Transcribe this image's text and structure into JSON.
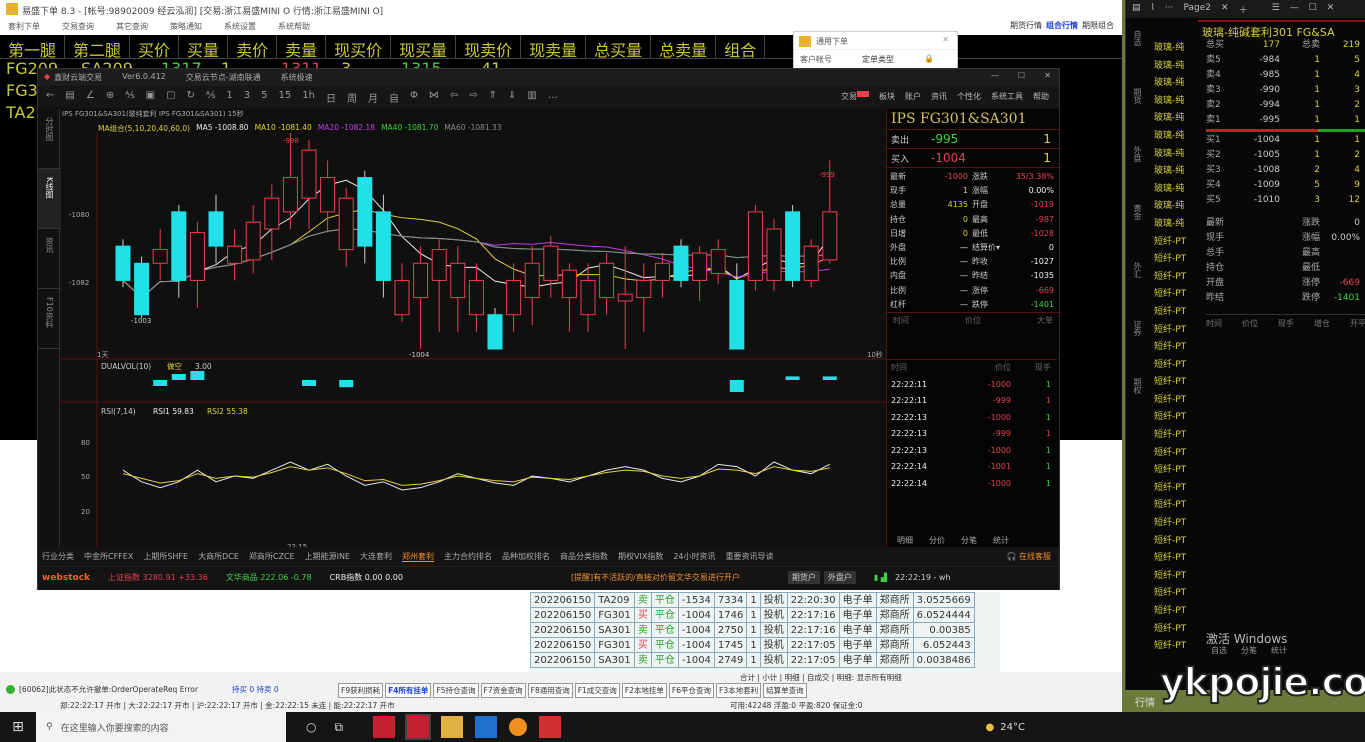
{
  "back_window": {
    "title": "易盛下单 8.3 - [帐号:98902009 经云泓润] [交易:浙江易盛MINI  O 行情:浙江易盛MINI  O]",
    "menu": [
      "套利下单",
      "交易查询",
      "其它查询",
      "策略通知",
      "系统设置",
      "系统帮助"
    ],
    "top_tabs": [
      "期货行情",
      "组合行情",
      "期限组合"
    ],
    "grid_headers": [
      "第一腿",
      "第二腿",
      "买价",
      "买量",
      "卖价",
      "卖量",
      "现买价",
      "现买量",
      "现卖价",
      "现卖量",
      "总买量",
      "总卖量",
      "组合"
    ],
    "rows": [
      [
        "FG209",
        "SA209",
        "1317",
        "1",
        "1311",
        "3",
        "1315",
        "41",
        "1313",
        "45",
        "452",
        "700"
      ],
      [
        "FG3"
      ],
      [
        "TA2"
      ]
    ]
  },
  "dialog": {
    "title": "通用下单",
    "field": "客户帐号",
    "type_label": "定单类型"
  },
  "main_window": {
    "title": "鑫财云端交易",
    "version": "Ver6.0.412",
    "node": "交易云节点-湖南联通",
    "mode": "系统极速",
    "tools": [
      "←",
      "▤",
      "∠",
      "⊕",
      "⅍",
      "▣",
      "▢",
      "↻",
      "⅍",
      "1",
      "3",
      "5",
      "15",
      "1h",
      "日",
      "周",
      "月",
      "自",
      "Φ",
      "⋈",
      "⇦",
      "⇨",
      "⇑",
      "⇓",
      "▥",
      "…"
    ],
    "menu_right": [
      "交易",
      "板块",
      "账户",
      "资讯",
      "个性化",
      "系统工具",
      "帮助"
    ],
    "menu_badge_color": "#e84050",
    "vtabs": [
      "分时图",
      "K线图",
      "资讯",
      "F10资料"
    ],
    "chart_header": "IPS FG301&SA301(玻纯套利 IPS FG301&SA301) 15秒",
    "ma_legend": [
      {
        "text": "MA组合(5,10,20,40,60,0)",
        "color": "#e0d040"
      },
      {
        "text": "MA5 -1008.80",
        "color": "#e8e8e8"
      },
      {
        "text": "MA10 -1081.40",
        "color": "#e0d040"
      },
      {
        "text": "MA20 -1082.18",
        "color": "#c040e0"
      },
      {
        "text": "MA40 -1081.70",
        "color": "#40d040"
      },
      {
        "text": "MA60 -1081.33",
        "color": "#888888"
      }
    ],
    "price_ticks": [
      "-1080",
      "-1082"
    ],
    "price_annotations": [
      "-998",
      "-1003",
      "-1004",
      "-999"
    ],
    "period_left": "1天",
    "period_right": "10秒",
    "vol_legend": {
      "name": "DUALVOL(10)",
      "label": "做空",
      "value": "3.00"
    },
    "rsi_legend": {
      "name": "RSI(7,14)",
      "rsi1": "RSI1 59.83",
      "rsi2": "RSI2 55.38"
    },
    "rsi_ticks": [
      "80",
      "50",
      "20"
    ],
    "time_label": "22:15",
    "candles": [
      [
        -1081,
        -1082,
        -1080.8,
        -1082.2
      ],
      [
        -1081.5,
        -1083,
        -1081.3,
        -1083.1
      ],
      [
        -1081.5,
        -1081.1,
        -1080.5,
        -1082
      ],
      [
        -1080,
        -1082,
        -1079.8,
        -1082.5
      ],
      [
        -1082,
        -1080.6,
        -1080.3,
        -1082.8
      ],
      [
        -1080,
        -1081,
        -1079.5,
        -1081.5
      ],
      [
        -1081.5,
        -1081,
        -1080.5,
        -1082
      ],
      [
        -1081.4,
        -1080.3,
        -1079.8,
        -1081.8
      ],
      [
        -1080.5,
        -1079.6,
        -1079.2,
        -1081.4
      ],
      [
        -1080,
        -1079,
        -1077.7,
        -1080.5
      ],
      [
        -1079.6,
        -1078.2,
        -1077.9,
        -1080.5
      ],
      [
        -1080,
        -1079,
        -1078.5,
        -1080.6
      ],
      [
        -1081.1,
        -1079.6,
        -1079.3,
        -1081.6
      ],
      [
        -1079,
        -1081,
        -1078.8,
        -1081.5
      ],
      [
        -1080,
        -1082,
        -1079.5,
        -1082.5
      ],
      [
        -1083,
        -1082,
        -1081.5,
        -1083.2
      ],
      [
        -1082.5,
        -1081.5,
        -1081,
        -1084
      ],
      [
        -1082,
        -1081.1,
        -1080.8,
        -1083.5
      ],
      [
        -1082.5,
        -1081.5,
        -1081,
        -1083.5
      ],
      [
        -1083,
        -1082,
        -1081.5,
        -1083.5
      ],
      [
        -1083,
        -1084,
        -1082.8,
        -1084
      ],
      [
        -1083,
        -1082,
        -1081.5,
        -1083.5
      ],
      [
        -1082.5,
        -1081.5,
        -1081,
        -1083.3
      ],
      [
        -1082,
        -1081,
        -1080.7,
        -1082.5
      ],
      [
        -1082.5,
        -1081.7,
        -1081.5,
        -1083.5
      ],
      [
        -1083,
        -1082,
        -1081.5,
        -1083.5
      ],
      [
        -1082.5,
        -1081.5,
        -1081.2,
        -1083
      ],
      [
        -1082.6,
        -1082.4,
        -1081,
        -1084
      ],
      [
        -1082.5,
        -1082,
        -1081.5,
        -1083.5
      ],
      [
        -1082,
        -1081.5,
        -1081.2,
        -1082.5
      ],
      [
        -1081,
        -1082,
        -1080.8,
        -1082.2
      ],
      [
        -1082,
        -1081.2,
        -1081,
        -1082.6
      ],
      [
        -1081.8,
        -1081.1,
        -1080.8,
        -1082.1
      ],
      [
        -1082,
        -1084,
        -1081.5,
        -1084
      ],
      [
        -1082,
        -1080,
        -1079.8,
        -1082.3
      ],
      [
        -1082,
        -1080.5,
        -1080.2,
        -1082.3
      ],
      [
        -1080,
        -1082,
        -1079.8,
        -1082.2
      ],
      [
        -1082,
        -1081,
        -1080.8,
        -1082.2
      ],
      [
        -1081.4,
        -1080,
        -1078.5,
        -1081.5
      ]
    ],
    "volume": [
      0,
      0,
      -1,
      1,
      1.5,
      0,
      0,
      0,
      0,
      0,
      -1,
      0,
      -1.2,
      0,
      0,
      0,
      0,
      0,
      0,
      0,
      0,
      0,
      0,
      0,
      0,
      0,
      0,
      0,
      0,
      0,
      0,
      0,
      0,
      -2,
      0,
      0,
      0.6,
      0,
      0.6
    ],
    "rsi1": [
      55,
      45,
      40,
      45,
      55,
      45,
      50,
      48,
      55,
      62,
      55,
      60,
      50,
      42,
      45,
      38,
      40,
      45,
      52,
      48,
      44,
      42,
      50,
      48,
      45,
      50,
      55,
      58,
      55,
      48,
      45,
      50,
      60,
      58,
      50,
      62,
      55,
      52,
      60
    ],
    "rsi2": [
      52,
      48,
      44,
      46,
      52,
      48,
      50,
      49,
      53,
      58,
      55,
      57,
      52,
      46,
      47,
      42,
      43,
      46,
      50,
      48,
      46,
      45,
      49,
      48,
      47,
      50,
      53,
      55,
      54,
      50,
      48,
      50,
      56,
      55,
      52,
      58,
      55,
      54,
      57
    ],
    "info": {
      "title": "IPS  FG301&SA301",
      "sell_label": "卖出",
      "sell_price": "-995",
      "sell_qty": "1",
      "buy_label": "买入",
      "buy_price": "-1004",
      "buy_qty": "1",
      "rows": [
        [
          "最新",
          "-1000",
          "涨跌",
          "35/3.38%"
        ],
        [
          "现手",
          "1",
          "涨幅",
          "0.00%"
        ],
        [
          "总量",
          "4135",
          "开盘",
          "-1019"
        ],
        [
          "持仓",
          "0",
          "最高",
          "-987"
        ],
        [
          "日增",
          "0",
          "最低",
          "-1028"
        ],
        [
          "外盘",
          "—",
          "结算价▾",
          "0"
        ],
        [
          "比例",
          "—",
          "昨收",
          "-1027"
        ],
        [
          "内盘",
          "—",
          "昨结",
          "-1035"
        ],
        [
          "比例",
          "—",
          "涨停",
          "-669"
        ],
        [
          "杠杆",
          "—",
          "跌停",
          "-1401"
        ]
      ],
      "mid_header": [
        "时间",
        "价位",
        "大单"
      ],
      "tick_header": [
        "时间",
        "价位",
        "现手"
      ],
      "ticks": [
        [
          "22:22:11",
          "-1000",
          "1"
        ],
        [
          "22:22:11",
          "-999",
          "1"
        ],
        [
          "22:22:13",
          "-1000",
          "1"
        ],
        [
          "22:22:13",
          "-999",
          "1"
        ],
        [
          "22:22:13",
          "-1000",
          "1"
        ],
        [
          "22:22:14",
          "-1001",
          "1"
        ],
        [
          "22:22:14",
          "-1000",
          "1"
        ]
      ],
      "tabs": [
        "明细",
        "分价",
        "分笔",
        "统计"
      ]
    },
    "categories": [
      "行业分类",
      "中金所CFFEX",
      "上期所SHFE",
      "大商所DCE",
      "郑商所CZCE",
      "上期能源INE",
      "大连套利",
      "郑州套利",
      "主力合约排名",
      "品种加权排名",
      "商品分类指数",
      "期权VIX指数",
      "24小时资讯",
      "重要资讯导读"
    ],
    "active_category": "郑州套利",
    "support": "在线客服",
    "logo": "webstock",
    "idx1": "上证指数 3280.91 +33.36",
    "idx2": "文华商品 222.06 -0.78",
    "idx3": "CRB指数  0.00 0.00",
    "notice": "[提醒]有不活跃的/直接对价留文华交易进行开户",
    "btn_domestic": "期货户",
    "btn_foreign": "外盘户",
    "clock": "22:22:19 - wh"
  },
  "trades": [
    [
      "202206150",
      "TA209",
      "卖",
      "平仓",
      "-1534",
      "7334",
      "1",
      "投机",
      "22:20:30",
      "电子单",
      "郑商所",
      "3.0525669"
    ],
    [
      "202206150",
      "FG301",
      "买",
      "平仓",
      "-1004",
      "1746",
      "1",
      "投机",
      "22:17:16",
      "电子单",
      "郑商所",
      "6.0524444"
    ],
    [
      "202206150",
      "SA301",
      "卖",
      "平仓",
      "-1004",
      "2750",
      "1",
      "投机",
      "22:17:16",
      "电子单",
      "郑商所",
      "0.00385"
    ],
    [
      "202206150",
      "FG301",
      "买",
      "平仓",
      "-1004",
      "1745",
      "1",
      "投机",
      "22:17:05",
      "电子单",
      "郑商所",
      "6.052443"
    ],
    [
      "202206150",
      "SA301",
      "卖",
      "平仓",
      "-1004",
      "2749",
      "1",
      "投机",
      "22:17:05",
      "电子单",
      "郑商所",
      "0.0038486"
    ]
  ],
  "status": {
    "subtabs": "合计 | 小计 | 明细 | 自成交 | 明细: 显示所有明细",
    "error": "[60062]此状态不允许撤单:OrderOperateReq Error",
    "counts": "持买 0  持卖 0",
    "fkeys": [
      "F9获利损耗",
      "F4所有挂单",
      "F5持仓查询",
      "F7资金查询",
      "F8通用查询",
      "F1成交查询",
      "F2本地挂单",
      "F6平仓查询",
      "F3本地套利",
      "结算单查询"
    ],
    "markets": "郑:22:22:17 开市 | 大:22:22:17 开市 | 沪:22:22:17 开市 | 金:22:22:15 未连 | 能:22:22:17 开市",
    "funds": "可用:42248 浮盈:0 平盈:820 保证金:0"
  },
  "taskbar": {
    "search_placeholder": "在这里输入你要搜索的内容",
    "weather": "24°C"
  },
  "right_panel": {
    "tab": "Page2",
    "title": "玻璃-纯碱套利301   FG&SA",
    "vtabs": [
      "自选",
      "期货",
      "外盘",
      "黄金",
      "外汇",
      "证券",
      "期权"
    ],
    "names": [
      "玻璃-纯",
      "玻璃-纯",
      "玻璃-纯",
      "玻璃-纯",
      "玻璃-纯",
      "玻璃-纯",
      "玻璃-纯",
      "玻璃-纯",
      "玻璃-纯",
      "玻璃-纯",
      "玻璃-纯",
      "短纤-PT",
      "短纤-PT",
      "短纤-PT",
      "短纤-PT",
      "短纤-PT",
      "短纤-PT",
      "短纤-PT",
      "短纤-PT",
      "短纤-PT",
      "短纤-PT",
      "短纤-PT",
      "短纤-PT",
      "短纤-PT",
      "短纤-PT",
      "短纤-PT",
      "短纤-PT",
      "短纤-PT",
      "短纤-PT",
      "短纤-PT",
      "短纤-PT",
      "短纤-PT",
      "短纤-PT",
      "短纤-PT",
      "短纤-PT"
    ],
    "total": [
      "总买",
      "177",
      "总卖",
      "219"
    ],
    "asks": [
      [
        "卖5",
        "-984",
        "1",
        "5"
      ],
      [
        "卖4",
        "-985",
        "1",
        "4"
      ],
      [
        "卖3",
        "-990",
        "1",
        "3"
      ],
      [
        "卖2",
        "-994",
        "1",
        "2"
      ],
      [
        "卖1",
        "-995",
        "1",
        "1"
      ]
    ],
    "bids": [
      [
        "买1",
        "-1004",
        "1",
        "1"
      ],
      [
        "买2",
        "-1005",
        "1",
        "2"
      ],
      [
        "买3",
        "-1008",
        "2",
        "4"
      ],
      [
        "买4",
        "-1009",
        "5",
        "9"
      ],
      [
        "买5",
        "-1010",
        "3",
        "12"
      ]
    ],
    "stats": [
      [
        "最新",
        "",
        "涨跌",
        "0"
      ],
      [
        "现手",
        "",
        "涨幅",
        "0.00%"
      ],
      [
        "总手",
        "",
        "最高",
        ""
      ],
      [
        "持仓",
        "",
        "最低",
        ""
      ],
      [
        "开盘",
        "",
        "涨停",
        "-669"
      ],
      [
        "昨结",
        "",
        "跌停",
        "-1401"
      ]
    ],
    "tick_header": [
      "时间",
      "价位",
      "现手",
      "增仓",
      "开平"
    ],
    "activate": "激活 Windows",
    "bottom_tabs": [
      "自选",
      "分笔",
      "统计"
    ],
    "bottom_label": "行情"
  },
  "watermark": "ykpojie.com"
}
